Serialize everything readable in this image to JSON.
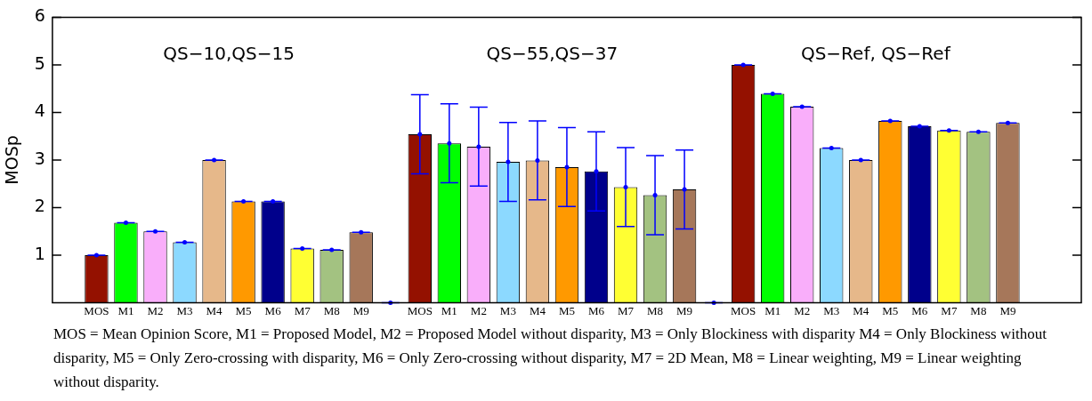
{
  "chart_data": {
    "type": "bar",
    "ylabel": "MOSp",
    "categories": [
      null,
      "MOS",
      "M1",
      "M2",
      "M3",
      "M4",
      "M5",
      "M6",
      "M7",
      "M8",
      "M9",
      null,
      "MOS",
      "M1",
      "M2",
      "M3",
      "M4",
      "M5",
      "M6",
      "M7",
      "M8",
      "M9",
      null,
      "MOS",
      "M1",
      "M2",
      "M3",
      "M4",
      "M5",
      "M6",
      "M7",
      "M8",
      "M9",
      null,
      null
    ],
    "values": [
      null,
      1.0,
      1.68,
      1.5,
      1.27,
      3.0,
      2.13,
      2.13,
      1.14,
      1.11,
      1.48,
      0,
      3.54,
      3.35,
      3.28,
      2.96,
      2.99,
      2.85,
      2.76,
      2.43,
      2.26,
      2.38,
      0,
      5.0,
      4.39,
      4.12,
      3.25,
      3.0,
      3.82,
      3.71,
      3.62,
      3.59,
      3.78,
      null,
      null
    ],
    "errors": [
      null,
      0,
      0,
      0,
      0,
      0,
      0,
      0,
      0,
      0,
      0,
      0,
      0.83,
      0.83,
      0.83,
      0.83,
      0.83,
      0.83,
      0.83,
      0.83,
      0.83,
      0.83,
      0,
      0,
      0,
      0,
      0,
      0,
      0,
      0,
      0,
      0,
      0,
      null,
      null
    ],
    "colors": [
      "#ffffff",
      "#941100",
      "#00ff00",
      "#f9aefa",
      "#8cd9ff",
      "#e6b88a",
      "#ff9900",
      "#00008b",
      "#ffff33",
      "#a3c281",
      "#a6775a",
      "#ffffff",
      "#941100",
      "#00ff00",
      "#f9aefa",
      "#8cd9ff",
      "#e6b88a",
      "#ff9900",
      "#00008b",
      "#ffff33",
      "#a3c281",
      "#a6775a",
      "#ffffff",
      "#941100",
      "#00ff00",
      "#f9aefa",
      "#8cd9ff",
      "#e6b88a",
      "#ff9900",
      "#00008b",
      "#ffff33",
      "#a3c281",
      "#a6775a",
      "#ffffff",
      "#ffffff"
    ],
    "ylim": [
      0,
      6
    ],
    "yticks": [
      1,
      2,
      3,
      4,
      5,
      6
    ],
    "grid": false,
    "legend": false,
    "annotations": [
      "QS−10,QS−15",
      "QS−55,QS−37",
      "QS−Ref, QS−Ref",
      "MOS = Mean Opinion Score, M1 = Proposed Model, M2 = Proposed Model without disparity, M3 = Only Blockiness with disparity M4 = Only Blockiness without disparity, M5 = Only Zero-crossing with disparity, M6 = Only Zero-crossing without disparity, M7 = 2D Mean, M8 = Linear weighting, M9 = Linear weighting without disparity."
    ]
  }
}
